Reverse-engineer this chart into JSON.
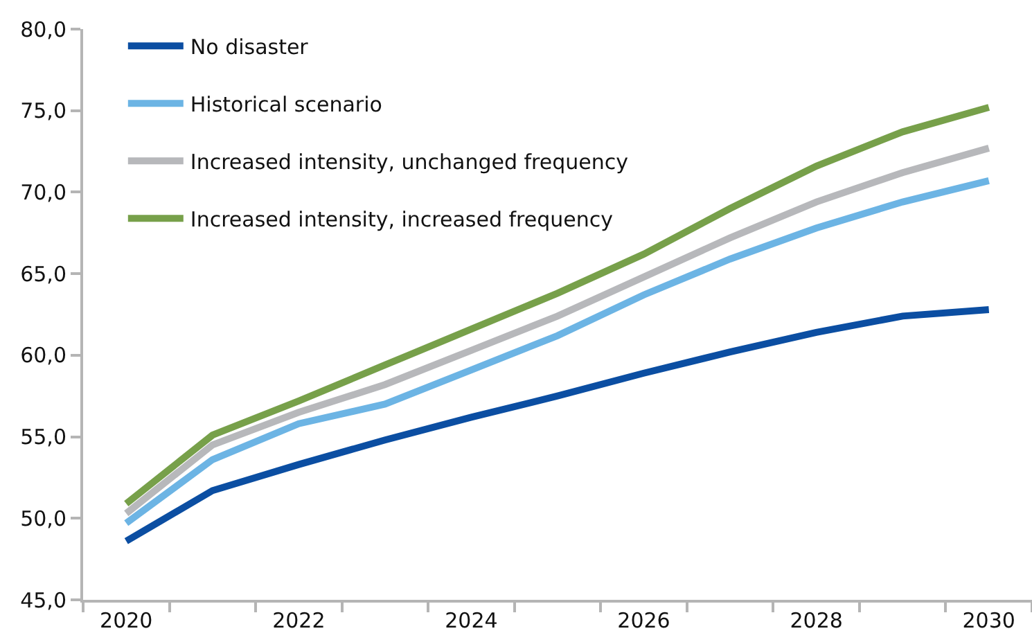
{
  "chart_data": {
    "type": "line",
    "categories": [
      "2020",
      null,
      "2022",
      null,
      "2024",
      null,
      "2026",
      null,
      "2028",
      null,
      "2030"
    ],
    "series": [
      {
        "name": "No disaster",
        "color": "#0b4ea2",
        "values": [
          48.6,
          51.7,
          53.3,
          54.8,
          56.2,
          57.5,
          58.9,
          60.2,
          61.4,
          62.4,
          62.8
        ]
      },
      {
        "name": "Historical scenario",
        "color": "#6cb4e4",
        "values": [
          49.7,
          53.6,
          55.8,
          57.0,
          59.1,
          61.2,
          63.7,
          65.9,
          67.8,
          69.4,
          70.7
        ]
      },
      {
        "name": "Increased intensity, unchanged frequency",
        "color": "#b7b8bb",
        "values": [
          50.3,
          54.5,
          56.5,
          58.2,
          60.3,
          62.4,
          64.8,
          67.2,
          69.4,
          71.2,
          72.7
        ]
      },
      {
        "name": "Increased intensity, increased frequency",
        "color": "#77a04a",
        "values": [
          50.9,
          55.1,
          57.2,
          59.4,
          61.6,
          63.8,
          66.2,
          69.0,
          71.6,
          73.7,
          75.2
        ]
      }
    ],
    "ylim": [
      45,
      80
    ],
    "yticks": [
      {
        "value": 45,
        "label": "45,0"
      },
      {
        "value": 50,
        "label": "50,0"
      },
      {
        "value": 55,
        "label": "55,0"
      },
      {
        "value": 60,
        "label": "60,0"
      },
      {
        "value": 65,
        "label": "65,0"
      },
      {
        "value": 70,
        "label": "70,0"
      },
      {
        "value": 75,
        "label": "75,0"
      },
      {
        "value": 80,
        "label": "80,0"
      }
    ],
    "grid": false,
    "legend": "top left",
    "marker": "none",
    "line_style": "solid"
  }
}
